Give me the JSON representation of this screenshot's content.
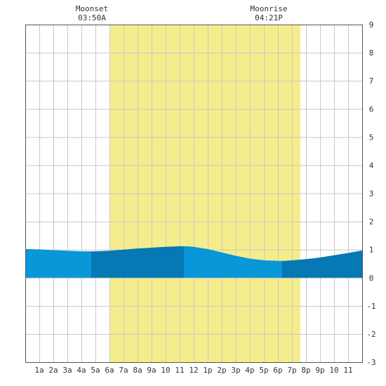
{
  "chart_data": {
    "type": "area",
    "title": "",
    "xlabel": "",
    "ylabel": "",
    "x_ticks": [
      "1a",
      "2a",
      "3a",
      "4a",
      "5a",
      "6a",
      "7a",
      "8a",
      "9a",
      "10",
      "11",
      "12",
      "1p",
      "2p",
      "3p",
      "4p",
      "5p",
      "6p",
      "7p",
      "8p",
      "9p",
      "10",
      "11"
    ],
    "xlim_hours": [
      0,
      24
    ],
    "ylim": [
      -3,
      9
    ],
    "y_ticks": [
      "-3",
      "-2",
      "-1",
      "0",
      "1",
      "2",
      "3",
      "4",
      "5",
      "6",
      "7",
      "8",
      "9"
    ],
    "grid": true,
    "daylight_hours": [
      6.0,
      19.6
    ],
    "tide_series": {
      "hours": [
        0,
        1,
        2,
        3,
        4,
        5,
        6,
        7,
        8,
        9,
        10,
        11,
        11.5,
        12,
        13,
        14,
        15,
        16,
        17,
        18,
        18.5,
        19,
        20,
        21,
        22,
        23,
        24
      ],
      "heights": [
        1.02,
        1.01,
        0.98,
        0.96,
        0.94,
        0.94,
        0.96,
        1.0,
        1.04,
        1.07,
        1.1,
        1.12,
        1.12,
        1.1,
        1.02,
        0.9,
        0.78,
        0.68,
        0.62,
        0.6,
        0.6,
        0.62,
        0.66,
        0.72,
        0.8,
        0.88,
        0.97
      ]
    },
    "tide_bands": [
      {
        "start": 0.0,
        "end": 4.7,
        "shade": "light"
      },
      {
        "start": 4.7,
        "end": 11.3,
        "shade": "dark"
      },
      {
        "start": 11.3,
        "end": 18.3,
        "shade": "light"
      },
      {
        "start": 18.3,
        "end": 24.0,
        "shade": "dark"
      }
    ],
    "annotations": [
      {
        "label": "Moonset",
        "time": "03:50A",
        "hour": 6.0
      },
      {
        "label": "Moonrise",
        "time": "04:21P",
        "hour": 18.6
      }
    ],
    "colors": {
      "daylight": "#f5ed8c",
      "tide_light": "#0897d8",
      "tide_dark": "#0678b4",
      "grid": "#c8c8c8",
      "frame": "#555555"
    }
  }
}
